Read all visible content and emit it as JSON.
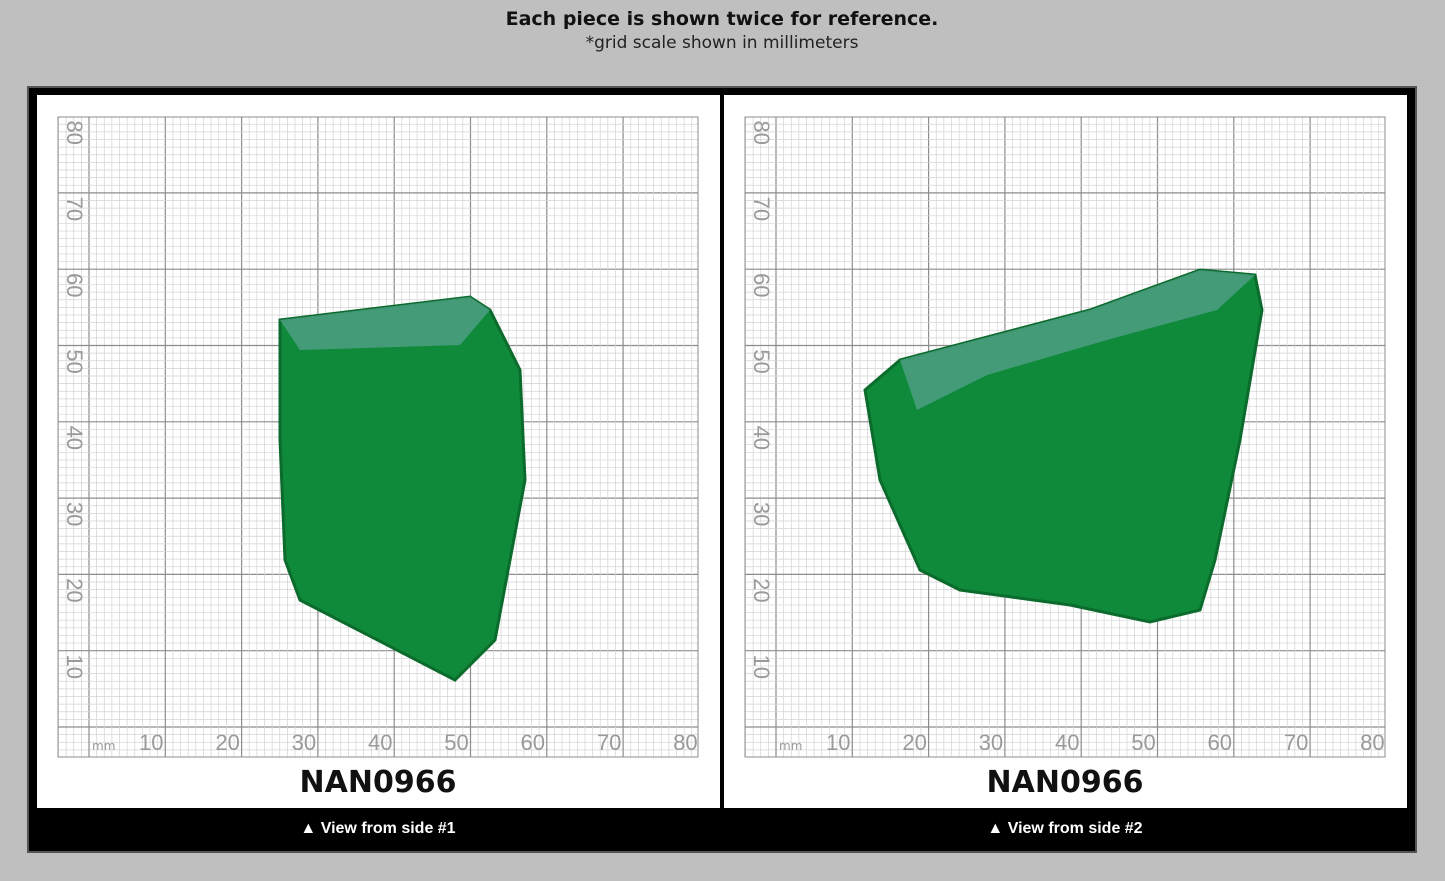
{
  "header": {
    "title": "Each piece is shown twice for reference.",
    "subtitle": "*grid scale shown in millimeters"
  },
  "panels": [
    {
      "unit": "mm",
      "x_labels": [
        "10",
        "20",
        "30",
        "40",
        "50",
        "60",
        "70",
        "80"
      ],
      "y_labels": [
        "10",
        "20",
        "30",
        "40",
        "50",
        "60",
        "70",
        "80"
      ],
      "code": "NAN0966",
      "caption": "▲ View from side #1"
    },
    {
      "unit": "mm",
      "x_labels": [
        "10",
        "20",
        "30",
        "40",
        "50",
        "60",
        "70",
        "80"
      ],
      "y_labels": [
        "10",
        "20",
        "30",
        "40",
        "50",
        "60",
        "70",
        "80"
      ],
      "code": "NAN0966",
      "caption": "▲ View from side #2"
    }
  ]
}
